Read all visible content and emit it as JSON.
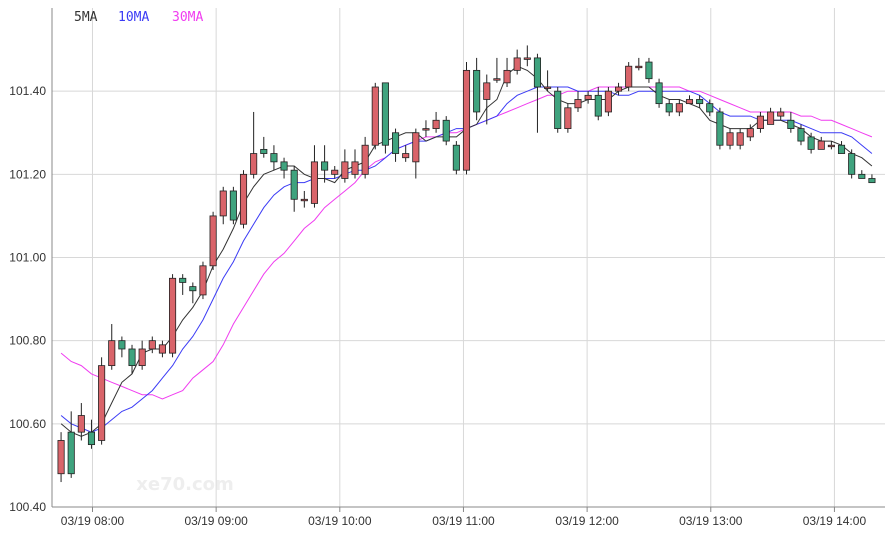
{
  "chart_data": {
    "type": "candlestick",
    "legend": [
      {
        "label": "5MA",
        "color": "#333333"
      },
      {
        "label": "10MA",
        "color": "#3b3bf5"
      },
      {
        "label": "30MA",
        "color": "#f03cf0"
      }
    ],
    "y_ticks": [
      "100.40",
      "100.60",
      "100.80",
      "101.00",
      "101.20",
      "101.40"
    ],
    "ylim": [
      100.4,
      101.6
    ],
    "x_ticks": [
      "03/19 08:00",
      "03/19 09:00",
      "03/19 10:00",
      "03/19 11:00",
      "03/19 12:00",
      "03/19 13:00",
      "03/19 14:00"
    ],
    "colors": {
      "up": "#d9646a",
      "down": "#3fa37e",
      "grid": "#d8d8d8",
      "axis": "#888888"
    },
    "watermark": "xe70.com",
    "candles": [
      [
        100.48,
        100.56,
        100.46,
        100.58
      ],
      [
        100.58,
        100.48,
        100.47,
        100.63
      ],
      [
        100.58,
        100.62,
        100.56,
        100.65
      ],
      [
        100.58,
        100.55,
        100.54,
        100.61
      ],
      [
        100.56,
        100.74,
        100.55,
        100.76
      ],
      [
        100.74,
        100.8,
        100.73,
        100.84
      ],
      [
        100.8,
        100.78,
        100.76,
        100.81
      ],
      [
        100.78,
        100.74,
        100.72,
        100.79
      ],
      [
        100.74,
        100.78,
        100.73,
        100.8
      ],
      [
        100.78,
        100.8,
        100.77,
        100.81
      ],
      [
        100.77,
        100.79,
        100.76,
        100.8
      ],
      [
        100.77,
        100.95,
        100.76,
        100.96
      ],
      [
        100.95,
        100.94,
        100.91,
        100.96
      ],
      [
        100.93,
        100.92,
        100.89,
        100.94
      ],
      [
        100.91,
        100.98,
        100.9,
        100.99
      ],
      [
        100.98,
        101.1,
        100.97,
        101.11
      ],
      [
        101.1,
        101.16,
        101.08,
        101.17
      ],
      [
        101.16,
        101.09,
        101.08,
        101.17
      ],
      [
        101.08,
        101.2,
        101.07,
        101.21
      ],
      [
        101.2,
        101.25,
        101.19,
        101.35
      ],
      [
        101.26,
        101.25,
        101.24,
        101.29
      ],
      [
        101.25,
        101.23,
        101.21,
        101.27
      ],
      [
        101.23,
        101.21,
        101.19,
        101.24
      ],
      [
        101.21,
        101.14,
        101.11,
        101.22
      ],
      [
        101.14,
        101.14,
        101.12,
        101.16
      ],
      [
        101.13,
        101.23,
        101.12,
        101.27
      ],
      [
        101.23,
        101.21,
        101.18,
        101.27
      ],
      [
        101.2,
        101.21,
        101.19,
        101.22
      ],
      [
        101.19,
        101.23,
        101.18,
        101.26
      ],
      [
        101.2,
        101.23,
        101.19,
        101.26
      ],
      [
        101.2,
        101.27,
        101.19,
        101.29
      ],
      [
        101.27,
        101.41,
        101.26,
        101.42
      ],
      [
        101.42,
        101.27,
        101.25,
        101.42
      ],
      [
        101.3,
        101.25,
        101.23,
        101.31
      ],
      [
        101.24,
        101.25,
        101.23,
        101.27
      ],
      [
        101.23,
        101.3,
        101.19,
        101.31
      ],
      [
        101.31,
        101.31,
        101.29,
        101.33
      ],
      [
        101.31,
        101.33,
        101.3,
        101.35
      ],
      [
        101.33,
        101.28,
        101.27,
        101.34
      ],
      [
        101.27,
        101.21,
        101.2,
        101.28
      ],
      [
        101.21,
        101.45,
        101.2,
        101.47
      ],
      [
        101.45,
        101.35,
        101.33,
        101.48
      ],
      [
        101.38,
        101.42,
        101.32,
        101.44
      ],
      [
        101.43,
        101.43,
        101.42,
        101.48
      ],
      [
        101.42,
        101.45,
        101.41,
        101.48
      ],
      [
        101.45,
        101.48,
        101.44,
        101.5
      ],
      [
        101.48,
        101.48,
        101.46,
        101.51
      ],
      [
        101.48,
        101.41,
        101.3,
        101.49
      ],
      [
        101.41,
        101.41,
        101.4,
        101.45
      ],
      [
        101.4,
        101.31,
        101.3,
        101.41
      ],
      [
        101.31,
        101.36,
        101.3,
        101.37
      ],
      [
        101.36,
        101.38,
        101.35,
        101.4
      ],
      [
        101.38,
        101.39,
        101.37,
        101.4
      ],
      [
        101.39,
        101.34,
        101.33,
        101.41
      ],
      [
        101.35,
        101.4,
        101.34,
        101.41
      ],
      [
        101.4,
        101.41,
        101.39,
        101.42
      ],
      [
        101.41,
        101.46,
        101.4,
        101.47
      ],
      [
        101.46,
        101.46,
        101.45,
        101.48
      ],
      [
        101.47,
        101.43,
        101.42,
        101.48
      ],
      [
        101.42,
        101.37,
        101.36,
        101.43
      ],
      [
        101.37,
        101.35,
        101.34,
        101.38
      ],
      [
        101.35,
        101.37,
        101.34,
        101.38
      ],
      [
        101.37,
        101.38,
        101.37,
        101.39
      ],
      [
        101.38,
        101.37,
        101.36,
        101.39
      ],
      [
        101.37,
        101.35,
        101.34,
        101.38
      ],
      [
        101.35,
        101.27,
        101.26,
        101.36
      ],
      [
        101.27,
        101.3,
        101.26,
        101.31
      ],
      [
        101.27,
        101.3,
        101.26,
        101.31
      ],
      [
        101.29,
        101.31,
        101.28,
        101.32
      ],
      [
        101.31,
        101.34,
        101.3,
        101.35
      ],
      [
        101.32,
        101.35,
        101.32,
        101.36
      ],
      [
        101.34,
        101.35,
        101.33,
        101.36
      ],
      [
        101.33,
        101.31,
        101.3,
        101.35
      ],
      [
        101.31,
        101.28,
        101.27,
        101.32
      ],
      [
        101.29,
        101.26,
        101.25,
        101.3
      ],
      [
        101.26,
        101.28,
        101.26,
        101.29
      ],
      [
        101.27,
        101.27,
        101.26,
        101.28
      ],
      [
        101.27,
        101.25,
        101.25,
        101.28
      ],
      [
        101.25,
        101.2,
        101.19,
        101.26
      ],
      [
        101.2,
        101.19,
        101.19,
        101.21
      ],
      [
        101.19,
        101.18,
        101.18,
        101.2
      ]
    ],
    "ma5": [
      100.6,
      100.58,
      100.57,
      100.58,
      100.6,
      100.65,
      100.7,
      100.72,
      100.77,
      100.78,
      100.78,
      100.81,
      100.85,
      100.88,
      100.92,
      100.98,
      101.02,
      101.07,
      101.13,
      101.17,
      101.2,
      101.21,
      101.22,
      101.22,
      101.2,
      101.19,
      101.19,
      101.18,
      101.21,
      101.22,
      101.23,
      101.27,
      101.28,
      101.29,
      101.3,
      101.3,
      101.28,
      101.29,
      101.29,
      101.29,
      101.31,
      101.32,
      101.36,
      101.38,
      101.44,
      101.46,
      101.45,
      101.43,
      101.4,
      101.38,
      101.37,
      101.37,
      101.38,
      101.38,
      101.38,
      101.4,
      101.41,
      101.41,
      101.41,
      101.39,
      101.38,
      101.38,
      101.37,
      101.36,
      101.33,
      101.32,
      101.31,
      101.31,
      101.31,
      101.33,
      101.33,
      101.33,
      101.32,
      101.31,
      101.29,
      101.28,
      101.28,
      101.27,
      101.25,
      101.24,
      101.22
    ],
    "ma10": [
      100.62,
      100.6,
      100.59,
      100.58,
      100.59,
      100.61,
      100.63,
      100.64,
      100.66,
      100.68,
      100.71,
      100.74,
      100.78,
      100.81,
      100.85,
      100.9,
      100.95,
      100.99,
      101.04,
      101.08,
      101.12,
      101.15,
      101.17,
      101.18,
      101.18,
      101.19,
      101.19,
      101.19,
      101.2,
      101.21,
      101.21,
      101.22,
      101.24,
      101.26,
      101.27,
      101.28,
      101.28,
      101.29,
      101.3,
      101.31,
      101.31,
      101.32,
      101.33,
      101.34,
      101.37,
      101.39,
      101.4,
      101.41,
      101.41,
      101.41,
      101.41,
      101.4,
      101.4,
      101.4,
      101.4,
      101.39,
      101.39,
      101.4,
      101.4,
      101.4,
      101.4,
      101.4,
      101.4,
      101.39,
      101.37,
      101.35,
      101.34,
      101.34,
      101.34,
      101.33,
      101.33,
      101.33,
      101.33,
      101.32,
      101.31,
      101.3,
      101.3,
      101.3,
      101.29,
      101.27,
      101.25
    ],
    "ma30": [
      100.77,
      100.75,
      100.74,
      100.72,
      100.71,
      100.7,
      100.69,
      100.68,
      100.67,
      100.67,
      100.66,
      100.67,
      100.68,
      100.71,
      100.73,
      100.75,
      100.79,
      100.84,
      100.88,
      100.92,
      100.96,
      100.99,
      101.01,
      101.04,
      101.07,
      101.09,
      101.12,
      101.14,
      101.16,
      101.18,
      101.21,
      101.23,
      101.24,
      101.26,
      101.27,
      101.28,
      101.29,
      101.29,
      101.3,
      101.3,
      101.31,
      101.32,
      101.33,
      101.34,
      101.35,
      101.36,
      101.37,
      101.38,
      101.39,
      101.39,
      101.4,
      101.4,
      101.4,
      101.41,
      101.41,
      101.41,
      101.41,
      101.41,
      101.41,
      101.41,
      101.41,
      101.41,
      101.4,
      101.4,
      101.39,
      101.38,
      101.37,
      101.36,
      101.35,
      101.35,
      101.35,
      101.35,
      101.35,
      101.34,
      101.34,
      101.33,
      101.33,
      101.32,
      101.31,
      101.3,
      101.29
    ]
  }
}
